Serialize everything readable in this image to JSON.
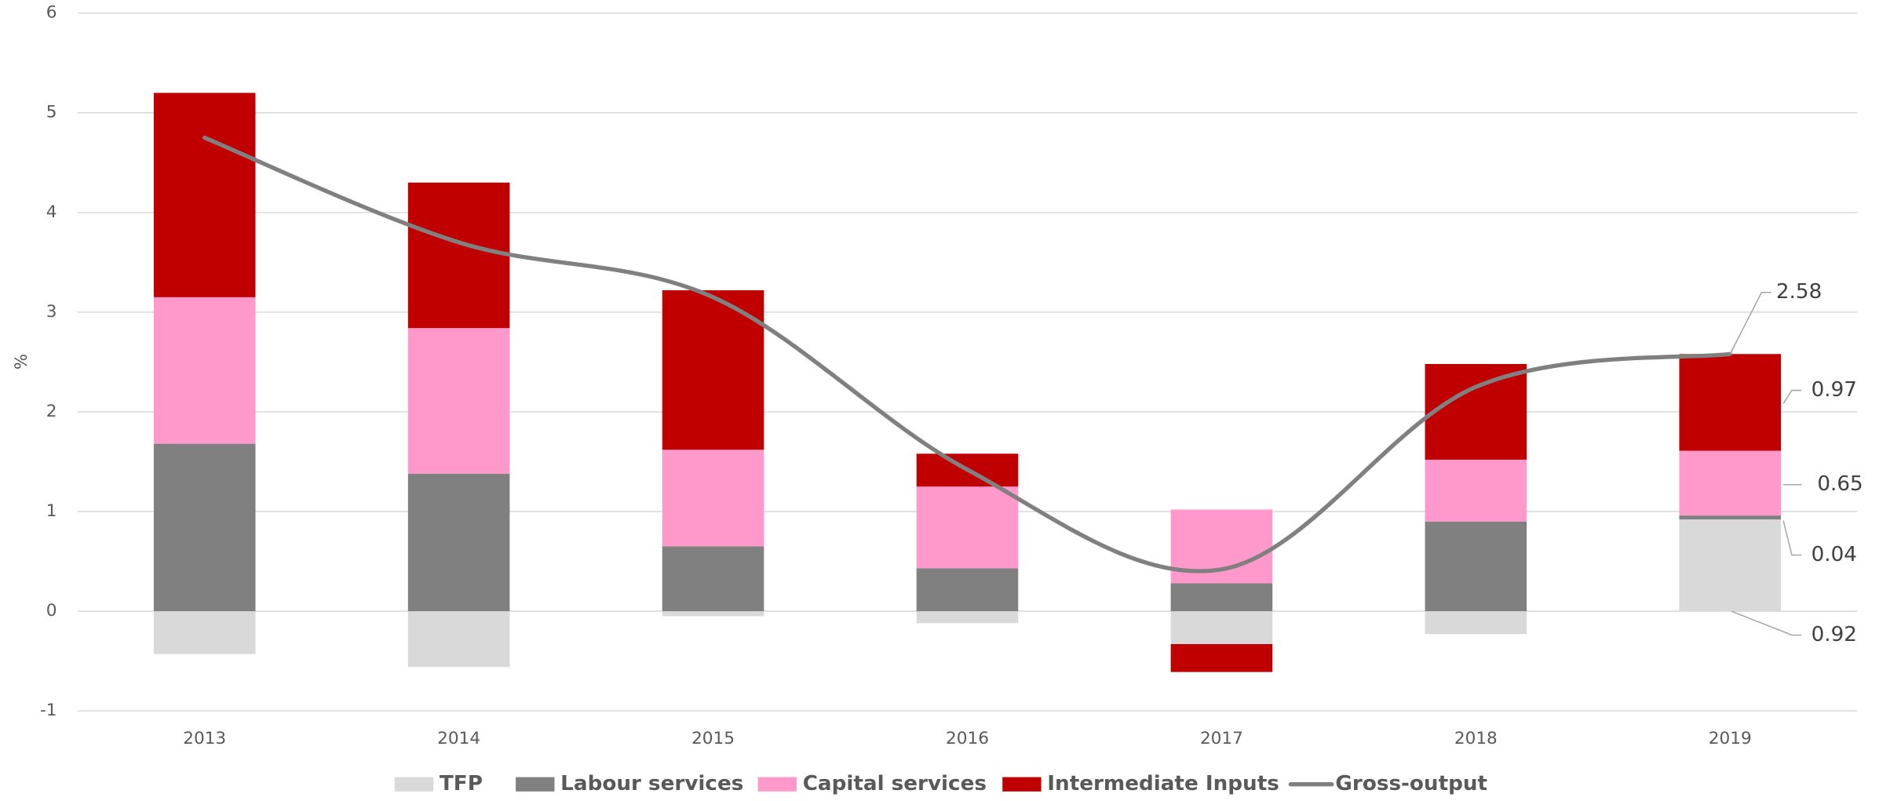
{
  "chart_data": {
    "type": "bar",
    "stacked": true,
    "y_label": "%",
    "categories": [
      "2013",
      "2014",
      "2015",
      "2016",
      "2017",
      "2018",
      "2019"
    ],
    "series": [
      {
        "name": "TFP",
        "color": "#d9d9d9",
        "values": [
          -0.43,
          -0.56,
          -0.05,
          -0.12,
          -0.33,
          -0.23,
          0.92
        ]
      },
      {
        "name": "Labour services",
        "color": "#808080",
        "values": [
          1.68,
          1.38,
          0.65,
          0.43,
          0.28,
          0.9,
          0.04
        ]
      },
      {
        "name": "Capital services",
        "color": "#ff99cc",
        "values": [
          1.47,
          1.46,
          0.97,
          0.82,
          0.74,
          0.62,
          0.65
        ]
      },
      {
        "name": "Intermediate Inputs",
        "color": "#c00000",
        "values": [
          2.05,
          1.46,
          1.6,
          0.33,
          -0.28,
          0.96,
          0.97
        ]
      },
      {
        "name": "Gross-output",
        "color": "#808080",
        "type": "line",
        "values": [
          4.75,
          3.7,
          3.15,
          1.42,
          0.42,
          2.25,
          2.58
        ]
      }
    ],
    "ylim": [
      -1,
      6
    ],
    "yticks": [
      -1,
      0,
      1,
      2,
      3,
      4,
      5,
      6
    ],
    "grid": true,
    "legend": "bottom"
  }
}
